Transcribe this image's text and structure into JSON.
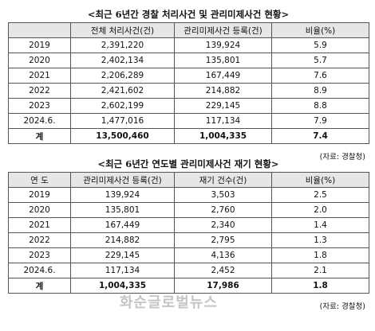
{
  "sections": [
    {
      "title": "<최근 6년간 경찰 처리사건 및 관리미제사건 현황>",
      "table": {
        "header": [
          "",
          "전체 처리사건(건)",
          "관리미제사건 등록(건)",
          "비율(%)"
        ],
        "rows": [
          [
            "2019",
            "2,391,220",
            "139,924",
            "5.9"
          ],
          [
            "2020",
            "2,402,134",
            "135,801",
            "5.7"
          ],
          [
            "2021",
            "2,206,289",
            "167,449",
            "7.6"
          ],
          [
            "2022",
            "2,421,602",
            "214,882",
            "8.9"
          ],
          [
            "2023",
            "2,602,199",
            "229,145",
            "8.8"
          ],
          [
            "2024.6.",
            "1,477,016",
            "117,134",
            "7.9"
          ],
          [
            "계",
            "13,500,460",
            "1,004,335",
            "7.4"
          ]
        ]
      },
      "source": "(자료: 경찰청)"
    },
    {
      "title": "<최근 6년간 연도별 관리미제사건 재기 현황>",
      "table": {
        "header": [
          "연 도",
          "관리미제사건 등록(건)",
          "재기 건수(건)",
          "비율(%)"
        ],
        "rows": [
          [
            "2019",
            "139,924",
            "3,503",
            "2.5"
          ],
          [
            "2020",
            "135,801",
            "2,760",
            "2.0"
          ],
          [
            "2021",
            "167,449",
            "2,340",
            "1.4"
          ],
          [
            "2022",
            "214,882",
            "2,795",
            "1.3"
          ],
          [
            "2023",
            "229,145",
            "4,136",
            "1.8"
          ],
          [
            "2024.6.",
            "117,134",
            "2,452",
            "2.1"
          ],
          [
            "계",
            "1,004,335",
            "17,986",
            "1.8"
          ]
        ]
      },
      "source": "(자료: 경찰청)"
    }
  ],
  "watermark": "화순글로벌뉴스"
}
